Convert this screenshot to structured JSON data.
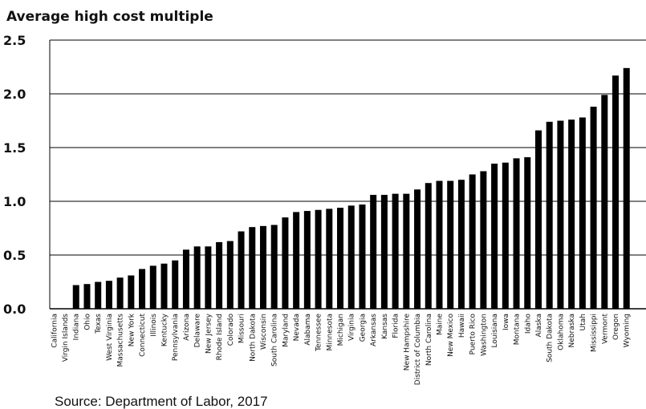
{
  "chart_data": {
    "type": "bar",
    "title": "Average high cost multiple",
    "ylim": [
      0,
      2.5
    ],
    "yticks": [
      "0.0",
      "0.5",
      "1.0",
      "1.5",
      "2.0",
      "2.5"
    ],
    "grid": true,
    "categories": [
      "California",
      "Virgin Islands",
      "Indiana",
      "Ohio",
      "Texas",
      "West Virginia",
      "Massachusetts",
      "New York",
      "Connecticut",
      "Illinois",
      "Kentucky",
      "Pennsylvania",
      "Arizona",
      "Delaware",
      "New Jersey",
      "Rhode Island",
      "Colorado",
      "Missouri",
      "North Dakota",
      "Wisconsin",
      "South Carolina",
      "Maryland",
      "Nevada",
      "Alabama",
      "Tennessee",
      "Minnesota",
      "Michigan",
      "Virginia",
      "Georgia",
      "Arkansas",
      "Kansas",
      "Florida",
      "New Hampshire",
      "District of Columbia",
      "North Carolina",
      "Maine",
      "New Mexico",
      "Hawaii",
      "Puerto Rico",
      "Washington",
      "Louisiana",
      "Iowa",
      "Montana",
      "Idaho",
      "Alaska",
      "South Dakota",
      "Oklahoma",
      "Nebraska",
      "Utah",
      "Mississippi",
      "Vermont",
      "Oregon",
      "Wyoming"
    ],
    "values": [
      0.0,
      0.0,
      0.22,
      0.23,
      0.25,
      0.26,
      0.29,
      0.31,
      0.37,
      0.4,
      0.42,
      0.45,
      0.55,
      0.58,
      0.58,
      0.62,
      0.63,
      0.72,
      0.76,
      0.77,
      0.78,
      0.85,
      0.9,
      0.91,
      0.92,
      0.93,
      0.94,
      0.96,
      0.97,
      1.06,
      1.06,
      1.07,
      1.07,
      1.11,
      1.17,
      1.19,
      1.19,
      1.2,
      1.25,
      1.28,
      1.35,
      1.36,
      1.4,
      1.41,
      1.66,
      1.74,
      1.75,
      1.76,
      1.78,
      1.88,
      1.99,
      2.17,
      2.24
    ],
    "bar_color": "#000000",
    "source": "Source:  Department of Labor, 2017"
  }
}
